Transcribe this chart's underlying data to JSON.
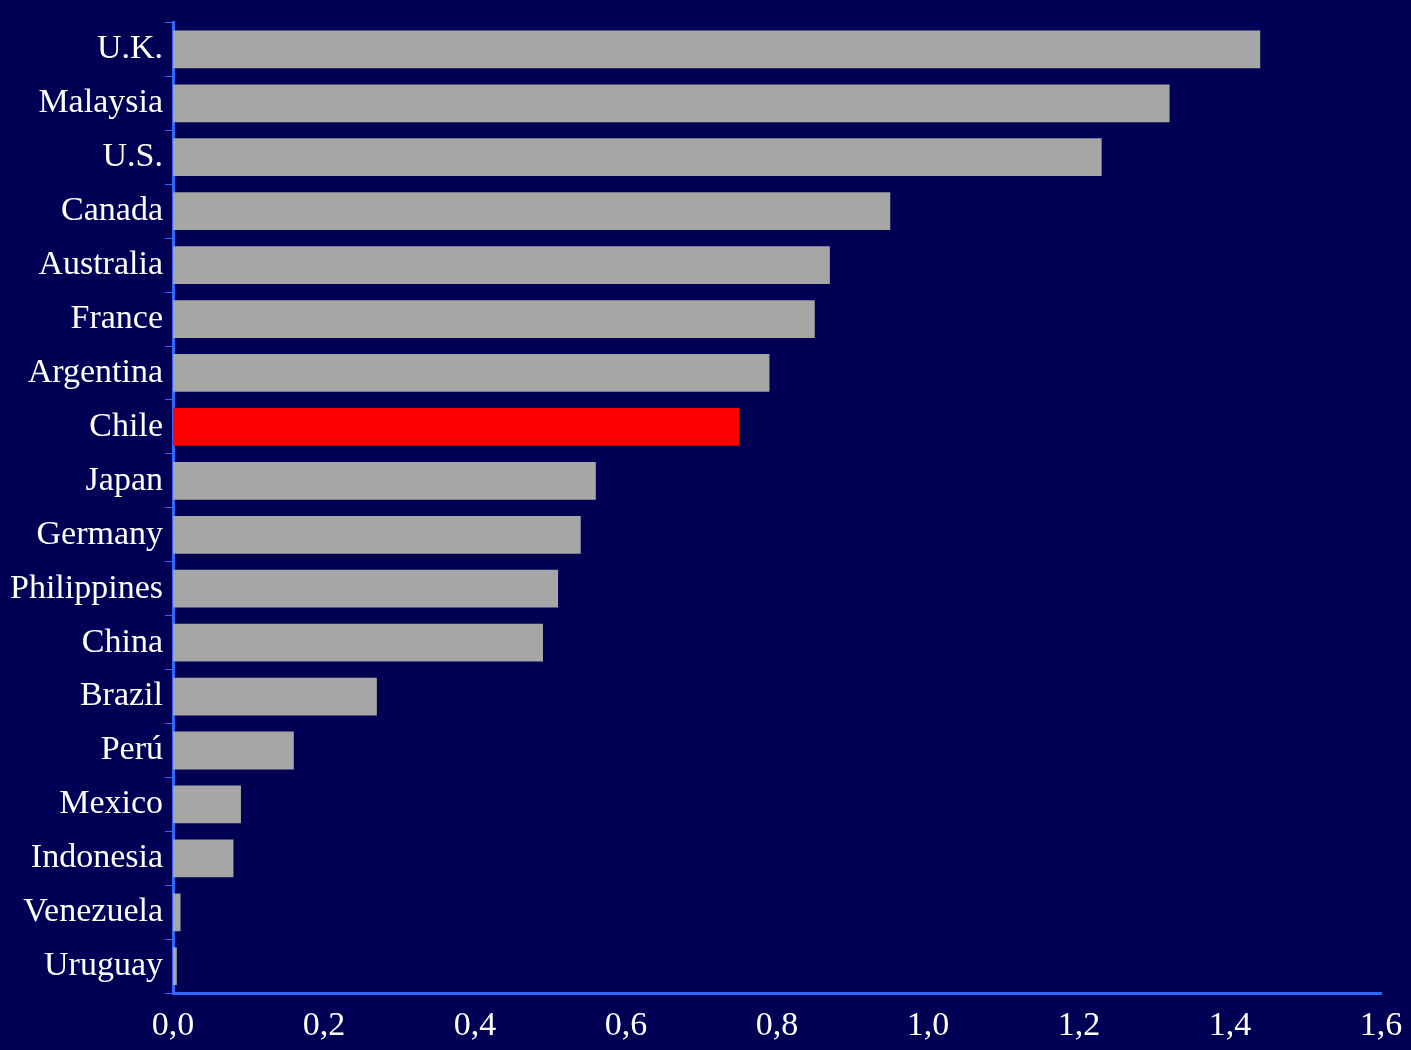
{
  "chart_data": {
    "type": "bar",
    "orientation": "horizontal",
    "categories": [
      "U.K.",
      "Malaysia",
      "U.S.",
      "Canada",
      "Australia",
      "France",
      "Argentina",
      "Chile",
      "Japan",
      "Germany",
      "Philippines",
      "China",
      "Brazil",
      "Perú",
      "Mexico",
      "Indonesia",
      "Venezuela",
      "Uruguay"
    ],
    "values": [
      1.44,
      1.32,
      1.23,
      0.95,
      0.87,
      0.85,
      0.79,
      0.75,
      0.56,
      0.54,
      0.51,
      0.49,
      0.27,
      0.16,
      0.09,
      0.08,
      0.01,
      0.005
    ],
    "colors": [
      "#a6a6a6",
      "#a6a6a6",
      "#a6a6a6",
      "#a6a6a6",
      "#a6a6a6",
      "#a6a6a6",
      "#a6a6a6",
      "#ff0000",
      "#a6a6a6",
      "#a6a6a6",
      "#a6a6a6",
      "#a6a6a6",
      "#a6a6a6",
      "#a6a6a6",
      "#a6a6a6",
      "#a6a6a6",
      "#a6a6a6",
      "#a6a6a6"
    ],
    "xlim": [
      0,
      1.6
    ],
    "xticks": [
      {
        "value": 0,
        "label": "0,0"
      },
      {
        "value": 0.2,
        "label": "0,2"
      },
      {
        "value": 0.4,
        "label": "0,4"
      },
      {
        "value": 0.6,
        "label": "0,6"
      },
      {
        "value": 0.8,
        "label": "0,8"
      },
      {
        "value": 1.0,
        "label": "1,0"
      },
      {
        "value": 1.2,
        "label": "1,2"
      },
      {
        "value": 1.4,
        "label": "1,4"
      },
      {
        "value": 1.6,
        "label": "1,6"
      }
    ],
    "grid": false,
    "legend": false
  }
}
